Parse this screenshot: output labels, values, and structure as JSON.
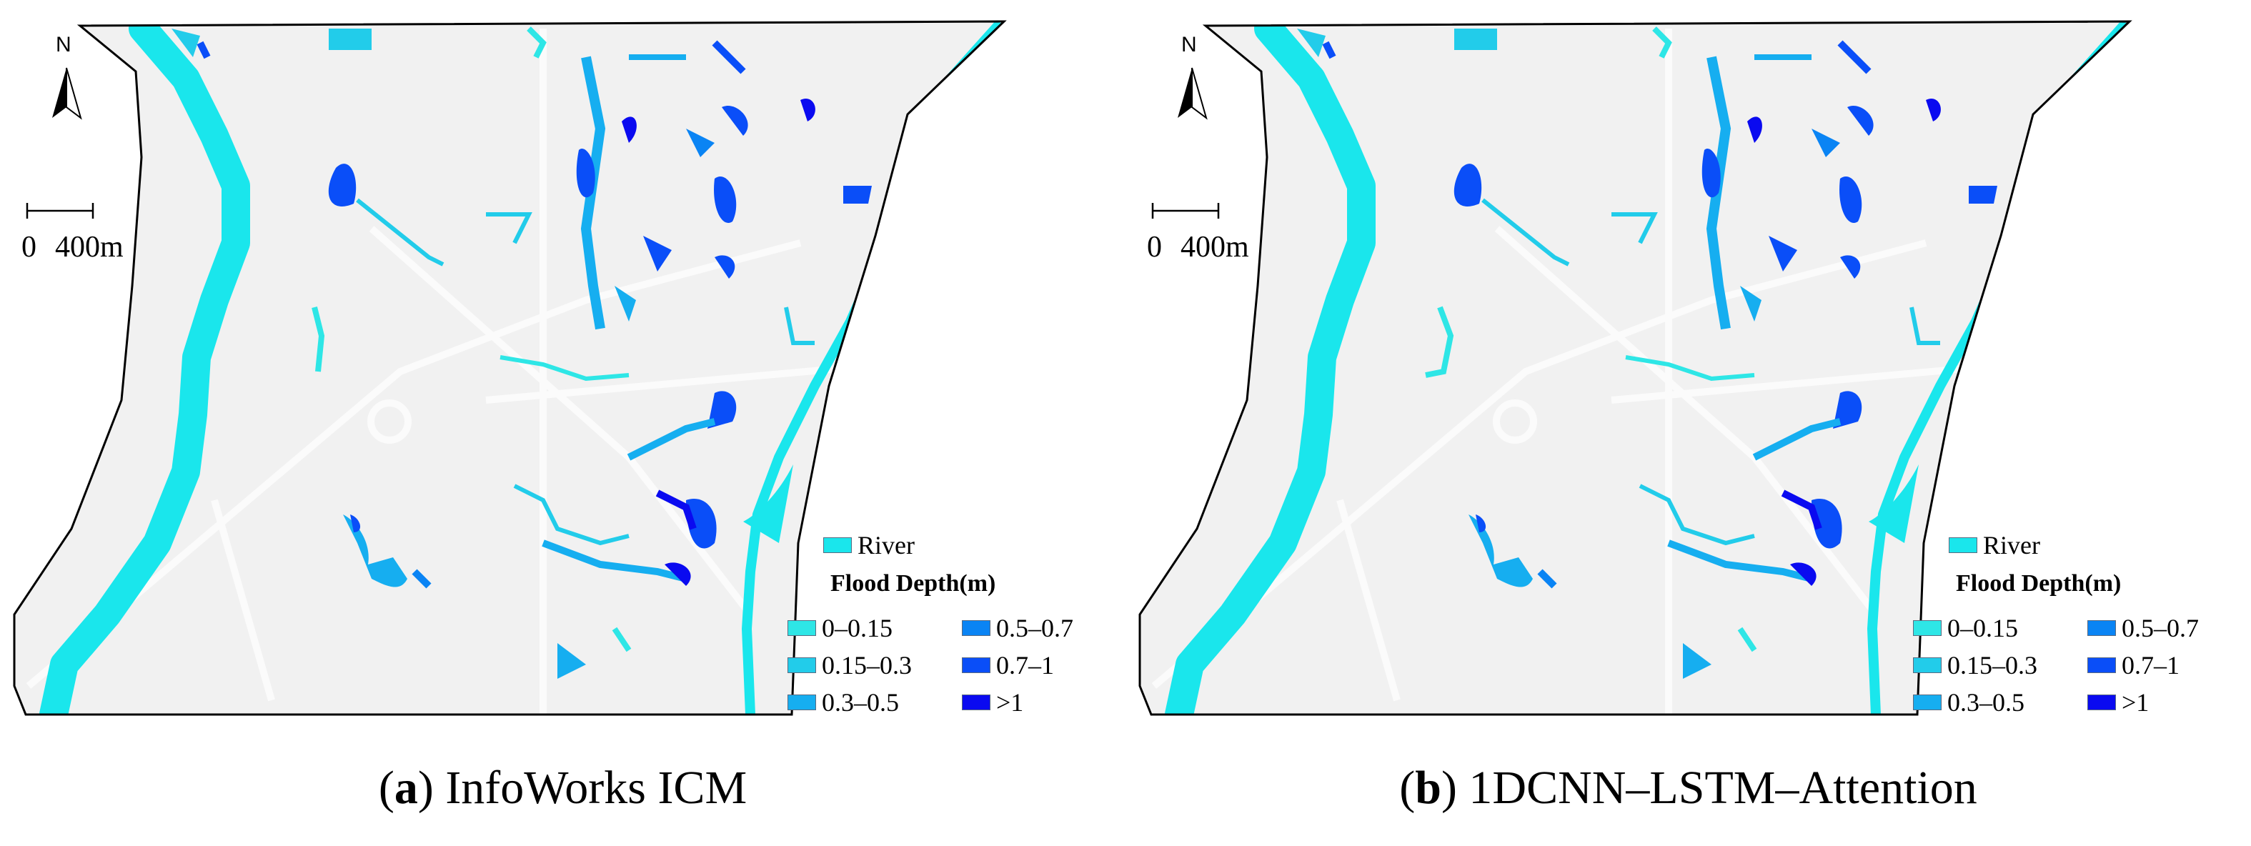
{
  "panels": [
    {
      "id": "a",
      "caption_letter": "a",
      "caption_text": "InfoWorks ICM"
    },
    {
      "id": "b",
      "caption_letter": "b",
      "caption_text": "1DCNN–LSTM–Attention"
    }
  ],
  "north_label": "N",
  "scale": {
    "start": "0",
    "end": "400m"
  },
  "legend": {
    "river_label": "River",
    "title": "Flood Depth(m)",
    "classes": [
      {
        "label": "0–0.15",
        "color": "#2ee6e6"
      },
      {
        "label": "0.15–0.3",
        "color": "#22ccea"
      },
      {
        "label": "0.3–0.5",
        "color": "#16aef0"
      },
      {
        "label": "0.5–0.7",
        "color": "#0a84f4"
      },
      {
        "label": "0.7–1",
        "color": "#0a4ef8"
      },
      {
        "label": ">1",
        "color": "#0a0af0"
      }
    ]
  },
  "colors": {
    "river": "#1ae6ec",
    "land": "#f1f1f1",
    "road": "#fafafa",
    "boundary": "#000000"
  }
}
